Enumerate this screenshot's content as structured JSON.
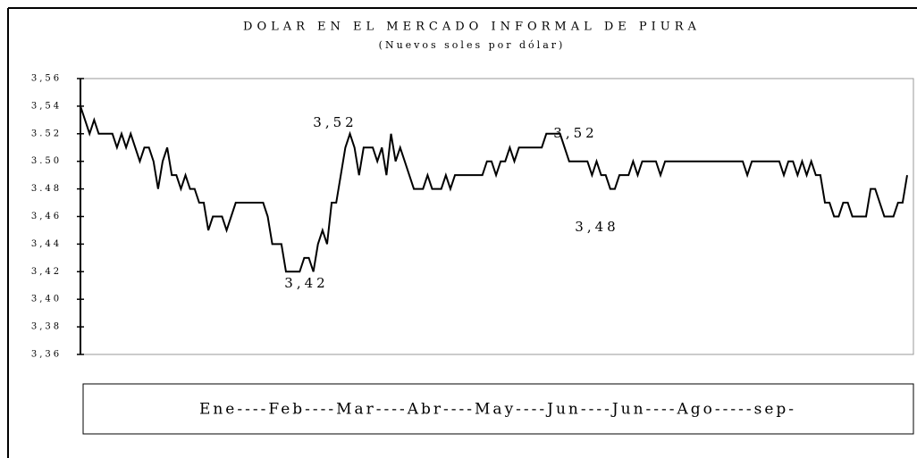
{
  "chart_data": {
    "type": "line",
    "title": "DOLAR EN EL MERCADO INFORMAL DE PIURA",
    "subtitle": "(Nuevos soles por dólar)",
    "x_label": "Ene----Feb----Mar----Abr----May----Jun----Jun----Ago-----sep-",
    "annotations": [
      "3,52",
      "3,42",
      "3,52",
      "3,48"
    ],
    "ylim": [
      3.36,
      3.56
    ],
    "yticks": [
      {
        "value": 3.36,
        "label": "3,36"
      },
      {
        "value": 3.38,
        "label": "3,38"
      },
      {
        "value": 3.4,
        "label": "3,40"
      },
      {
        "value": 3.42,
        "label": "3,42"
      },
      {
        "value": 3.44,
        "label": "3,44"
      },
      {
        "value": 3.46,
        "label": "3,46"
      },
      {
        "value": 3.48,
        "label": "3.48"
      },
      {
        "value": 3.5,
        "label": "3.50"
      },
      {
        "value": 3.52,
        "label": "3.52"
      },
      {
        "value": 3.54,
        "label": "3,54"
      },
      {
        "value": 3.56,
        "label": "3,56"
      }
    ],
    "color": "#000000",
    "categories": [
      null,
      null,
      null,
      null,
      null,
      null,
      null,
      null,
      null,
      null,
      null,
      null,
      null,
      null,
      null,
      null,
      null,
      null,
      null,
      null,
      null,
      null,
      null,
      null,
      null,
      null,
      null,
      null,
      null,
      null,
      null,
      null,
      null,
      null,
      null,
      null,
      null,
      null,
      null,
      null,
      null,
      null,
      null,
      null,
      null,
      null,
      null,
      null,
      null,
      null,
      null,
      null,
      null,
      null,
      null,
      null,
      null,
      null,
      null,
      null,
      null,
      null,
      null,
      null,
      null,
      null,
      null,
      null,
      null,
      null,
      null,
      null,
      null,
      null,
      null,
      null,
      null,
      null,
      null,
      null,
      null,
      null,
      null,
      null,
      null,
      null,
      null,
      null,
      null,
      null,
      null,
      null,
      null,
      null,
      null,
      null,
      null,
      null,
      null,
      null,
      null,
      null,
      null,
      null,
      null,
      null,
      null,
      null,
      null,
      null,
      null,
      null,
      null,
      null,
      null,
      null,
      null,
      null,
      null,
      null,
      null,
      null,
      null,
      null,
      null,
      null,
      null,
      null,
      null,
      null,
      null,
      null,
      null,
      null,
      null,
      null,
      null,
      null,
      null,
      null,
      null,
      null,
      null,
      null,
      null,
      null,
      null,
      null,
      null,
      null,
      null,
      null,
      null,
      null,
      null,
      null,
      null,
      null,
      null,
      null,
      null,
      null,
      null,
      null,
      null,
      null,
      null,
      null,
      null,
      null,
      null,
      null,
      null,
      null,
      null,
      null,
      null,
      null,
      null,
      null,
      null,
      null
    ],
    "values": [
      3.54,
      3.53,
      3.52,
      3.53,
      3.52,
      3.52,
      3.52,
      3.52,
      3.51,
      3.52,
      3.51,
      3.52,
      3.51,
      3.5,
      3.51,
      3.51,
      3.5,
      3.48,
      3.5,
      3.51,
      3.49,
      3.49,
      3.48,
      3.49,
      3.48,
      3.48,
      3.47,
      3.47,
      3.45,
      3.46,
      3.46,
      3.46,
      3.45,
      3.46,
      3.47,
      3.47,
      3.47,
      3.47,
      3.47,
      3.47,
      3.47,
      3.46,
      3.44,
      3.44,
      3.44,
      3.42,
      3.42,
      3.42,
      3.42,
      3.43,
      3.43,
      3.42,
      3.44,
      3.45,
      3.44,
      3.47,
      3.47,
      3.49,
      3.51,
      3.52,
      3.51,
      3.49,
      3.51,
      3.51,
      3.51,
      3.5,
      3.51,
      3.49,
      3.52,
      3.5,
      3.51,
      3.5,
      3.49,
      3.48,
      3.48,
      3.48,
      3.49,
      3.48,
      3.48,
      3.48,
      3.49,
      3.48,
      3.49,
      3.49,
      3.49,
      3.49,
      3.49,
      3.49,
      3.49,
      3.5,
      3.5,
      3.49,
      3.5,
      3.5,
      3.51,
      3.5,
      3.51,
      3.51,
      3.51,
      3.51,
      3.51,
      3.51,
      3.52,
      3.52,
      3.52,
      3.52,
      3.51,
      3.5,
      3.5,
      3.5,
      3.5,
      3.5,
      3.49,
      3.5,
      3.49,
      3.49,
      3.48,
      3.48,
      3.49,
      3.49,
      3.49,
      3.5,
      3.49,
      3.5,
      3.5,
      3.5,
      3.5,
      3.49,
      3.5,
      3.5,
      3.5,
      3.5,
      3.5,
      3.5,
      3.5,
      3.5,
      3.5,
      3.5,
      3.5,
      3.5,
      3.5,
      3.5,
      3.5,
      3.5,
      3.5,
      3.5,
      3.49,
      3.5,
      3.5,
      3.5,
      3.5,
      3.5,
      3.5,
      3.5,
      3.49,
      3.5,
      3.5,
      3.49,
      3.5,
      3.49,
      3.5,
      3.49,
      3.49,
      3.47,
      3.47,
      3.46,
      3.46,
      3.47,
      3.47,
      3.46,
      3.46,
      3.46,
      3.46,
      3.48,
      3.48,
      3.47,
      3.46,
      3.46,
      3.46,
      3.47,
      3.47,
      3.49
    ]
  }
}
